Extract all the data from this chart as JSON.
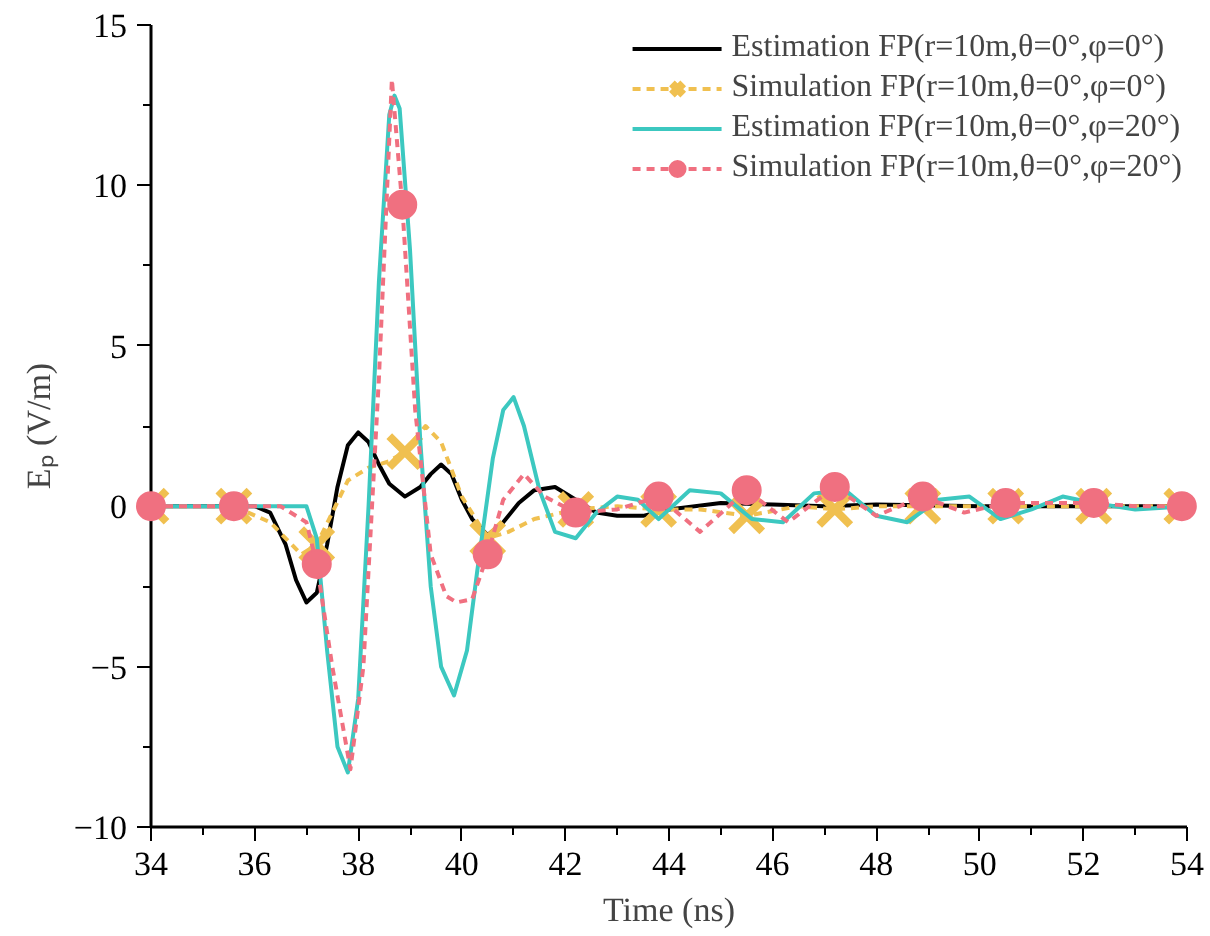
{
  "chart_data": {
    "type": "line",
    "xlabel": "Time (ns)",
    "ylabel": "Eₚ (V/m)",
    "xlim": [
      34,
      54
    ],
    "ylim": [
      -10,
      15
    ],
    "xticks": [
      34,
      {
        "value": 35,
        "label": null
      },
      36,
      {
        "value": 37,
        "label": null
      },
      38,
      {
        "value": 39,
        "label": null
      },
      40,
      {
        "value": 41,
        "label": null
      },
      42,
      {
        "value": 43,
        "label": null
      },
      44,
      {
        "value": 45,
        "label": null
      },
      46,
      {
        "value": 47,
        "label": null
      },
      48,
      {
        "value": 49,
        "label": null
      },
      50,
      {
        "value": 51,
        "label": null
      },
      52,
      {
        "value": 53,
        "label": null
      },
      54
    ],
    "yticks": [
      -10,
      {
        "value": -7.5,
        "label": null
      },
      -5,
      {
        "value": -2.5,
        "label": null
      },
      0,
      {
        "value": 2.5,
        "label": null
      },
      5,
      {
        "value": 7.5,
        "label": null
      },
      10,
      {
        "value": 12.5,
        "label": null
      },
      15
    ],
    "grid": false,
    "legend": "top right",
    "series": [
      {
        "name": "Estimation FP(r=10m,θ=0°,φ=0°)",
        "color": "#000000",
        "marker": "none",
        "line_style": "solid",
        "x": [
          34,
          35,
          36,
          36.3,
          36.6,
          36.8,
          37.0,
          37.2,
          37.4,
          37.6,
          37.8,
          38.0,
          38.2,
          38.4,
          38.6,
          38.9,
          39.2,
          39.4,
          39.6,
          39.8,
          40.0,
          40.2,
          40.5,
          40.8,
          41.1,
          41.4,
          41.8,
          42.2,
          42.6,
          43.0,
          43.5,
          44,
          45,
          46,
          47,
          48,
          50,
          52,
          54
        ],
        "values": [
          0,
          0,
          0,
          -0.2,
          -1.2,
          -2.3,
          -3.0,
          -2.7,
          -1.2,
          0.6,
          1.9,
          2.3,
          2.0,
          1.3,
          0.7,
          0.3,
          0.6,
          1.0,
          1.3,
          1.0,
          0.2,
          -0.4,
          -0.9,
          -0.5,
          0.1,
          0.5,
          0.6,
          0.2,
          -0.2,
          -0.3,
          -0.3,
          -0.1,
          0.1,
          0.05,
          0,
          0.05,
          0,
          0,
          0
        ]
      },
      {
        "name": "Simulation FP(r=10m,θ=0°,φ=0°)",
        "color": "#f0c050",
        "marker": "none",
        "line_style": "dashed",
        "x": [
          34,
          35.6,
          36.3,
          36.9,
          37.2,
          37.5,
          37.8,
          38.2,
          38.6,
          38.9,
          39.3,
          39.6,
          40.0,
          40.5,
          40.9,
          41.4,
          42.2,
          43,
          43.8,
          44.6,
          45.5,
          46.5,
          47.2,
          48,
          48.9,
          50,
          50.5,
          52.2,
          53.9
        ],
        "values": [
          0,
          0,
          -0.5,
          -1.5,
          -1.2,
          -0.2,
          0.8,
          1.2,
          1.4,
          1.7,
          2.5,
          2.0,
          0.3,
          -1.0,
          -0.8,
          -0.4,
          -0.1,
          0,
          -0.1,
          -0.1,
          -0.3,
          0,
          -0.1,
          0,
          0,
          0,
          0,
          0,
          0
        ]
      },
      {
        "color": "#f0c050",
        "type": "scatter",
        "marker": "cross",
        "x": [
          34,
          35.6,
          37.2,
          38.9,
          40.5,
          42.2,
          43.8,
          45.5,
          47.2,
          48.9,
          50.5,
          52.2,
          53.9
        ],
        "values": [
          0,
          0,
          -1.2,
          1.7,
          -1.0,
          -0.1,
          -0.1,
          -0.3,
          -0.1,
          0,
          0,
          0,
          0
        ]
      },
      {
        "name": "Estimation FP(r=10m,θ=0°,φ=20°)",
        "color": "#3cc8c0",
        "marker": "none",
        "line_style": "solid",
        "x": [
          34,
          35,
          36,
          37.0,
          37.2,
          37.4,
          37.6,
          37.8,
          38.0,
          38.2,
          38.4,
          38.6,
          38.7,
          38.8,
          39.0,
          39.2,
          39.4,
          39.6,
          39.85,
          40.1,
          40.3,
          40.6,
          40.8,
          41.0,
          41.2,
          41.5,
          41.8,
          42.2,
          42.6,
          43.0,
          43.4,
          43.8,
          44.4,
          45.0,
          45.6,
          46.2,
          46.8,
          47.4,
          48.0,
          48.6,
          49.2,
          49.8,
          50.4,
          51,
          51.6,
          52.2,
          53,
          54
        ],
        "values": [
          0,
          0,
          0,
          0,
          -1,
          -4.5,
          -7.5,
          -8.3,
          -6,
          0,
          7,
          12.2,
          12.8,
          12.4,
          8,
          2,
          -2.5,
          -5,
          -5.9,
          -4.5,
          -2,
          1.5,
          3,
          3.4,
          2.5,
          0.5,
          -0.8,
          -1.0,
          -0.2,
          0.3,
          0.2,
          -0.4,
          0.5,
          0.4,
          -0.4,
          -0.5,
          0.4,
          0.5,
          -0.3,
          -0.5,
          0.2,
          0.3,
          -0.4,
          -0.1,
          0.3,
          0.1,
          -0.1,
          0
        ]
      },
      {
        "name": "Simulation FP(r=10m,θ=0°,φ=20°)",
        "color": "#f07080",
        "marker": "none",
        "line_style": "dashed",
        "x": [
          34,
          35.6,
          36.5,
          37.0,
          37.2,
          37.5,
          37.85,
          38.1,
          38.4,
          38.65,
          38.85,
          39.1,
          39.4,
          39.7,
          39.9,
          40.2,
          40.5,
          40.8,
          41.2,
          41.6,
          42.2,
          43,
          43.8,
          44.6,
          45.5,
          46.3,
          47.2,
          48,
          48.9,
          49.7,
          50.5,
          51.3,
          52.2,
          53,
          53.9
        ],
        "values": [
          0,
          0,
          0,
          -0.5,
          -1.8,
          -5,
          -8.2,
          -5,
          4,
          13.3,
          9.4,
          3,
          -1.5,
          -2.8,
          -3,
          -2.9,
          -1.5,
          0.2,
          1.0,
          0.3,
          -0.2,
          -0.1,
          0.3,
          -0.8,
          0.5,
          -0.5,
          0.6,
          -0.3,
          0.3,
          -0.2,
          0.1,
          0.1,
          0.1,
          0.0,
          0
        ]
      },
      {
        "color": "#f07080",
        "type": "scatter",
        "marker": "circle",
        "x": [
          34,
          35.6,
          37.2,
          38.85,
          40.5,
          42.2,
          43.8,
          45.5,
          47.2,
          48.9,
          50.5,
          52.2,
          53.9
        ],
        "values": [
          0,
          0,
          -1.8,
          9.4,
          -1.5,
          -0.2,
          0.3,
          0.5,
          0.6,
          0.3,
          0.1,
          0.1,
          0
        ]
      }
    ]
  }
}
